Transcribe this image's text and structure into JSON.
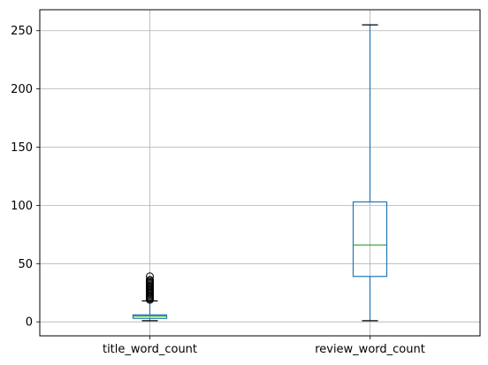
{
  "chart_data": {
    "type": "boxplot",
    "categories": [
      "title_word_count",
      "review_word_count"
    ],
    "boxes": [
      {
        "name": "title_word_count",
        "whisker_low": 1,
        "q1": 3,
        "median": 5,
        "q3": 6,
        "whisker_high": 18,
        "outliers": [
          19,
          20,
          21,
          22,
          23,
          24,
          25,
          26,
          27,
          28,
          29,
          30,
          31,
          32,
          33,
          34,
          35,
          36,
          39
        ]
      },
      {
        "name": "review_word_count",
        "whisker_low": 1,
        "q1": 39,
        "median": 66,
        "q3": 103,
        "whisker_high": 255,
        "outliers": []
      }
    ],
    "yticks": [
      0,
      50,
      100,
      150,
      200,
      250
    ],
    "ylim": [
      -12,
      268
    ],
    "grid": true,
    "colors": {
      "box": "#1f77b4",
      "median": "#2ca02c",
      "whisker": "#1f77b4",
      "cap": "#000000",
      "grid": "#b0b0b0",
      "axis": "#000000"
    }
  }
}
